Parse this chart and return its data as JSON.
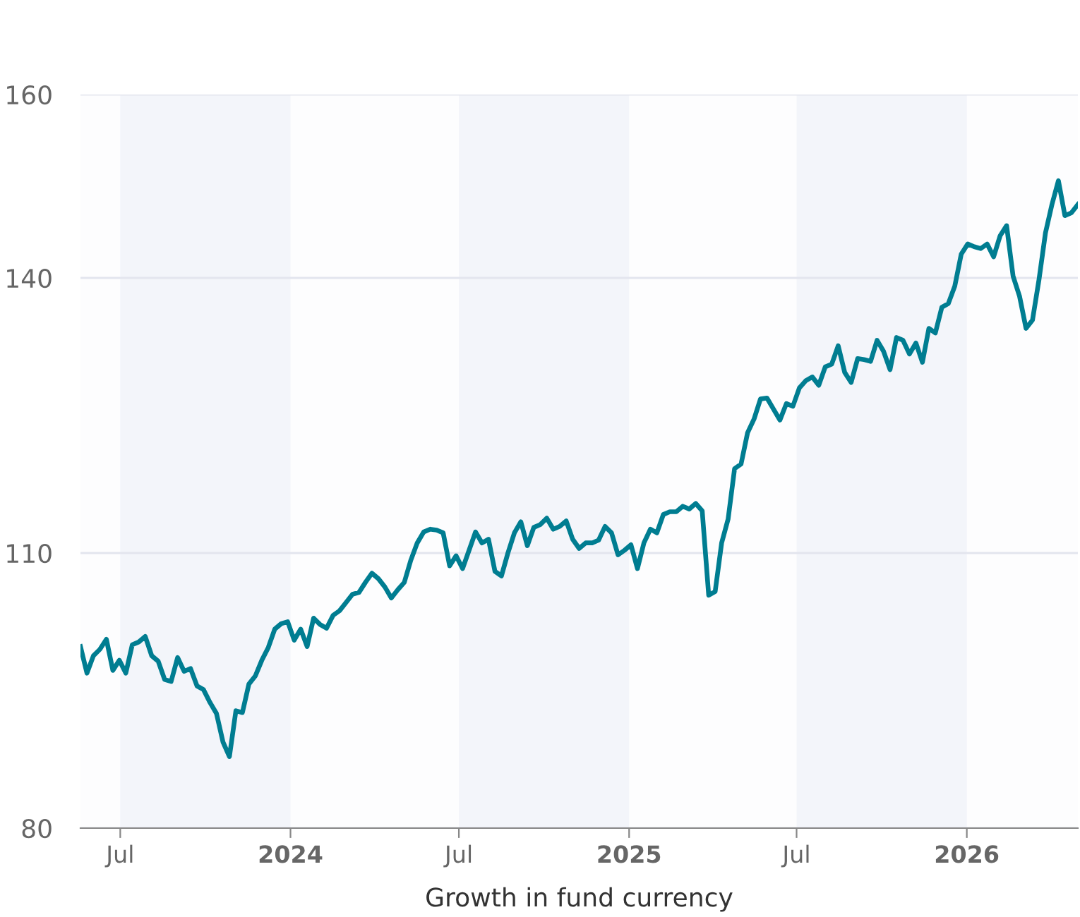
{
  "chart_data": {
    "type": "line",
    "xlabel": "Growth in fund currency",
    "x": [
      "2023-05-19",
      "2023-05-26",
      "2023-06-02",
      "2023-06-09",
      "2023-06-16",
      "2023-06-23",
      "2023-06-30",
      "2023-07-07",
      "2023-07-14",
      "2023-07-21",
      "2023-07-28",
      "2023-08-04",
      "2023-08-11",
      "2023-08-18",
      "2023-08-25",
      "2023-09-01",
      "2023-09-08",
      "2023-09-15",
      "2023-09-22",
      "2023-09-29",
      "2023-10-06",
      "2023-10-13",
      "2023-10-20",
      "2023-10-27",
      "2023-11-03",
      "2023-11-10",
      "2023-11-17",
      "2023-11-24",
      "2023-12-01",
      "2023-12-08",
      "2023-12-15",
      "2023-12-22",
      "2023-12-29",
      "2024-01-05",
      "2024-01-12",
      "2024-01-19",
      "2024-01-26",
      "2024-02-02",
      "2024-02-09",
      "2024-02-16",
      "2024-02-23",
      "2024-03-01",
      "2024-03-08",
      "2024-03-15",
      "2024-03-22",
      "2024-03-29",
      "2024-04-05",
      "2024-04-12",
      "2024-04-19",
      "2024-04-26",
      "2024-05-03",
      "2024-05-10",
      "2024-05-17",
      "2024-05-24",
      "2024-05-31",
      "2024-06-07",
      "2024-06-14",
      "2024-06-21",
      "2024-06-28",
      "2024-07-05",
      "2024-07-12",
      "2024-07-19",
      "2024-07-26",
      "2024-08-02",
      "2024-08-09",
      "2024-08-16",
      "2024-08-23",
      "2024-08-30",
      "2024-09-06",
      "2024-09-13",
      "2024-09-20",
      "2024-09-27",
      "2024-10-04",
      "2024-10-11",
      "2024-10-18",
      "2024-10-25",
      "2024-11-01",
      "2024-11-08",
      "2024-11-15",
      "2024-11-22",
      "2024-11-29",
      "2024-12-06",
      "2024-12-13",
      "2024-12-20",
      "2024-12-27",
      "2025-01-03",
      "2025-01-10",
      "2025-01-17",
      "2025-01-24",
      "2025-01-31",
      "2025-02-07",
      "2025-02-14",
      "2025-02-21",
      "2025-02-28",
      "2025-03-07",
      "2025-03-14",
      "2025-03-21",
      "2025-03-28",
      "2025-04-04",
      "2025-04-11",
      "2025-04-18",
      "2025-04-25",
      "2025-05-02",
      "2025-05-09",
      "2025-05-16",
      "2025-05-23",
      "2025-05-30",
      "2025-06-06",
      "2025-06-13",
      "2025-06-20",
      "2025-06-27",
      "2025-07-04",
      "2025-07-11",
      "2025-07-18",
      "2025-07-25",
      "2025-08-01",
      "2025-08-08",
      "2025-08-15",
      "2025-08-22",
      "2025-08-29",
      "2025-09-05",
      "2025-09-12",
      "2025-09-19",
      "2025-09-26",
      "2025-10-03",
      "2025-10-10",
      "2025-10-17",
      "2025-10-24",
      "2025-10-31",
      "2025-11-07",
      "2025-11-14",
      "2025-11-21",
      "2025-11-28",
      "2025-12-05",
      "2025-12-12",
      "2025-12-19",
      "2025-12-26",
      "2026-01-02",
      "2026-01-09",
      "2026-01-16",
      "2026-01-23",
      "2026-01-30",
      "2026-02-06",
      "2026-02-13",
      "2026-02-20",
      "2026-02-27",
      "2026-03-06",
      "2026-03-13",
      "2026-03-20",
      "2026-03-27",
      "2026-04-03",
      "2026-04-10",
      "2026-04-17",
      "2026-04-24",
      "2026-05-01"
    ],
    "series": [
      {
        "color": "#007d91",
        "values": [
          99.8,
          96.9,
          98.8,
          99.5,
          100.6,
          97.2,
          98.3,
          96.9,
          100.0,
          100.3,
          100.9,
          98.8,
          98.2,
          96.2,
          96.0,
          98.6,
          97.1,
          97.4,
          95.5,
          95.1,
          93.7,
          92.5,
          89.4,
          87.8,
          92.8,
          92.6,
          95.7,
          96.6,
          98.3,
          99.7,
          101.7,
          102.3,
          102.5,
          100.5,
          101.7,
          99.8,
          102.9,
          102.2,
          101.8,
          103.2,
          103.7,
          104.6,
          105.5,
          105.7,
          106.8,
          107.8,
          107.2,
          106.3,
          105.1,
          106.0,
          106.8,
          109.2,
          111.1,
          112.3,
          112.6,
          112.5,
          112.2,
          108.6,
          109.7,
          108.3,
          110.3,
          112.3,
          111.1,
          111.5,
          108.0,
          107.5,
          110.0,
          112.2,
          113.4,
          110.8,
          112.8,
          113.1,
          113.8,
          112.6,
          112.9,
          113.5,
          111.5,
          110.5,
          111.1,
          111.1,
          111.4,
          112.9,
          112.2,
          109.8,
          110.3,
          110.9,
          108.3,
          111.1,
          112.6,
          112.2,
          114.2,
          114.5,
          114.5,
          115.1,
          114.8,
          115.4,
          114.6,
          105.4,
          105.8,
          111.1,
          113.7,
          119.2,
          119.7,
          123.1,
          124.6,
          126.8,
          126.9,
          125.7,
          124.5,
          126.3,
          126.0,
          128.0,
          128.8,
          129.2,
          128.3,
          130.3,
          130.6,
          132.6,
          129.7,
          128.6,
          131.2,
          131.1,
          130.9,
          133.2,
          132.0,
          130.0,
          133.5,
          133.2,
          131.7,
          132.9,
          130.8,
          134.5,
          134.0,
          136.8,
          137.2,
          139.1,
          142.6,
          143.7,
          143.4,
          143.2,
          143.7,
          142.3,
          144.6,
          145.7,
          140.2,
          138.0,
          134.5,
          135.4,
          139.8,
          144.9,
          148.0,
          150.6,
          146.8,
          147.1,
          148.0
        ]
      }
    ],
    "xlim": [
      "2023-05-19",
      "2026-05-01"
    ],
    "xticks": [
      {
        "value": "2023-07-01",
        "label": "Jul"
      },
      {
        "value": "2024-01-01",
        "label": "2024"
      },
      {
        "value": "2024-07-01",
        "label": "Jul"
      },
      {
        "value": "2025-01-01",
        "label": "2025"
      },
      {
        "value": "2025-07-01",
        "label": "Jul"
      },
      {
        "value": "2026-01-01",
        "label": "2026"
      }
    ],
    "ylim": [
      80,
      160
    ],
    "yticks": [
      80,
      110,
      140,
      160
    ],
    "grid": "y",
    "marker": "none",
    "line_style": "solid",
    "bands": [
      {
        "axis": "x",
        "from": "2023-07-01",
        "to": "2024-01-01",
        "color": "#f3f5fa"
      },
      {
        "axis": "x",
        "from": "2024-07-01",
        "to": "2025-01-01",
        "color": "#f3f5fa"
      },
      {
        "axis": "x",
        "from": "2025-07-01",
        "to": "2026-01-01",
        "color": "#f3f5fa"
      }
    ]
  }
}
